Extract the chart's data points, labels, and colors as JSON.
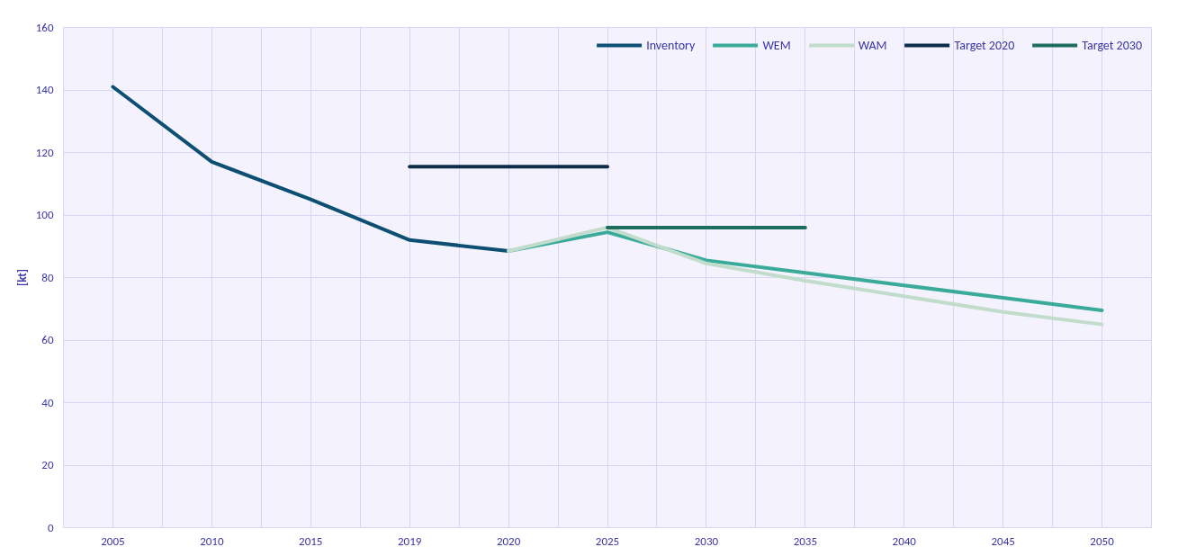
{
  "chart_data": {
    "type": "line",
    "ylabel": "[kt]",
    "categories": [
      "2005",
      "2010",
      "2015",
      "2019",
      "2020",
      "2025",
      "2030",
      "2035",
      "2040",
      "2045",
      "2050"
    ],
    "series": [
      {
        "name": "Inventory",
        "color": "#0d4f73",
        "values": [
          141,
          117,
          105,
          92,
          88.5,
          null,
          null,
          null,
          null,
          null,
          null
        ]
      },
      {
        "name": "WEM",
        "color": "#3aaa9a",
        "values": [
          null,
          null,
          null,
          null,
          88.5,
          94.5,
          85.5,
          81.5,
          77.5,
          73.5,
          69.5
        ]
      },
      {
        "name": "WAM",
        "color": "#c2dccb",
        "values": [
          null,
          null,
          null,
          null,
          88.5,
          96,
          84.5,
          79,
          74,
          69,
          65
        ]
      },
      {
        "name": "Target 2020",
        "color": "#0e2d4a",
        "values": [
          null,
          null,
          null,
          115.5,
          115.5,
          115.5,
          null,
          null,
          null,
          null,
          null
        ]
      },
      {
        "name": "Target 2030",
        "color": "#1e6b60",
        "values": [
          null,
          null,
          null,
          null,
          null,
          96,
          96,
          96,
          null,
          null,
          null
        ]
      }
    ],
    "ylim": [
      0,
      160
    ],
    "yticks": [
      0,
      20,
      40,
      60,
      80,
      100,
      120,
      140,
      160
    ],
    "grid": true,
    "legend": "top right",
    "marker": "none",
    "line_style": "solid"
  }
}
